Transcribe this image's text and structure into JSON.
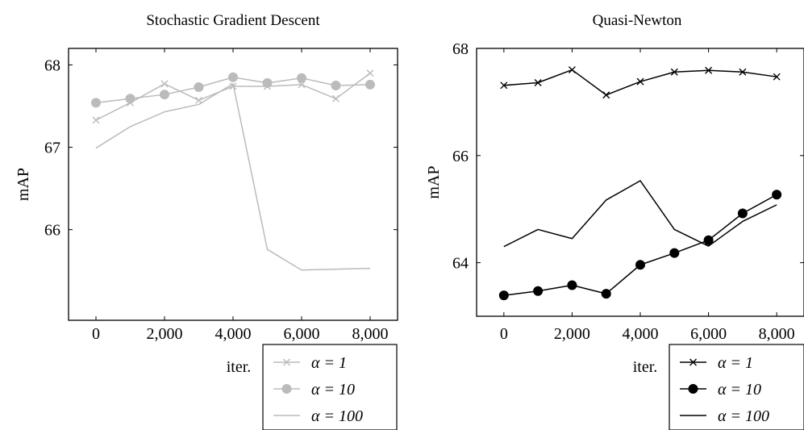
{
  "chart_data": [
    {
      "type": "line",
      "title": "Stochastic Gradient Descent",
      "xlabel": "iter.",
      "ylabel": "mAP",
      "xlim": [
        -800,
        8800
      ],
      "ylim": [
        64.9,
        68.2
      ],
      "xticks": [
        0,
        2000,
        4000,
        6000,
        8000
      ],
      "xtick_labels": [
        "0",
        "2,000",
        "4,000",
        "6,000",
        "8,000"
      ],
      "yticks": [
        66,
        67,
        68
      ],
      "ytick_labels": [
        "66",
        "67",
        "68"
      ],
      "color": "#bbbbbb",
      "legend_position": "below-right",
      "x": [
        0,
        1000,
        2000,
        3000,
        4000,
        5000,
        6000,
        7000,
        8000
      ],
      "series": [
        {
          "name": "α = 1",
          "marker": "x",
          "values": [
            67.33,
            67.54,
            67.77,
            67.57,
            67.74,
            67.74,
            67.76,
            67.59,
            67.9
          ]
        },
        {
          "name": "α = 10",
          "marker": "circle",
          "values": [
            67.54,
            67.59,
            67.64,
            67.73,
            67.85,
            67.78,
            67.84,
            67.75,
            67.76
          ]
        },
        {
          "name": "α = 100",
          "marker": "none",
          "values": [
            66.99,
            67.25,
            67.43,
            67.52,
            67.77,
            65.76,
            65.51,
            null,
            65.53
          ]
        }
      ]
    },
    {
      "type": "line",
      "title": "Quasi-Newton",
      "xlabel": "iter.",
      "ylabel": "mAP",
      "xlim": [
        -800,
        8800
      ],
      "ylim": [
        63.0,
        68.0
      ],
      "xticks": [
        0,
        2000,
        4000,
        6000,
        8000
      ],
      "xtick_labels": [
        "0",
        "2,000",
        "4,000",
        "6,000",
        "8,000"
      ],
      "yticks": [
        64,
        66,
        68
      ],
      "ytick_labels": [
        "64",
        "66",
        "68"
      ],
      "color": "#000000",
      "legend_position": "below-right",
      "x": [
        0,
        1000,
        2000,
        3000,
        4000,
        5000,
        6000,
        7000,
        8000
      ],
      "series": [
        {
          "name": "α = 1",
          "marker": "x",
          "values": [
            67.31,
            67.36,
            67.6,
            67.13,
            67.38,
            67.56,
            67.59,
            67.56,
            67.47
          ]
        },
        {
          "name": "α = 10",
          "marker": "circle",
          "values": [
            63.39,
            63.47,
            63.58,
            63.42,
            63.96,
            64.18,
            64.42,
            64.92,
            65.27
          ]
        },
        {
          "name": "α = 100",
          "marker": "none",
          "values": [
            64.3,
            64.62,
            64.45,
            65.17,
            65.53,
            64.62,
            64.31,
            64.77,
            65.08
          ]
        }
      ]
    }
  ]
}
